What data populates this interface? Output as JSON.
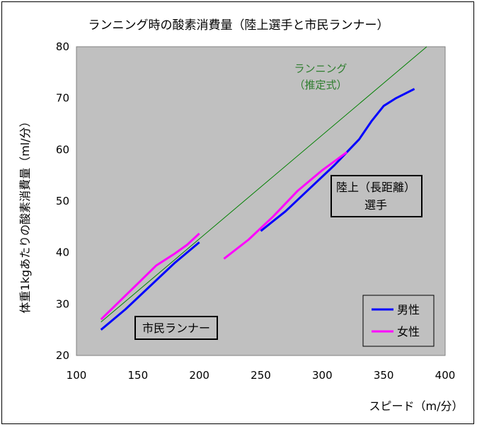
{
  "chart_data": {
    "type": "line",
    "title": "ランニング時の酸素消費量（陸上選手と市民ランナー）",
    "xlabel": "スピード（m/分）",
    "ylabel": "体重1kgあたりの酸素消費量（ml/分）",
    "xlim": [
      100,
      400
    ],
    "ylim": [
      20,
      80
    ],
    "xticks": [
      100,
      150,
      200,
      250,
      300,
      350,
      400
    ],
    "yticks": [
      20,
      30,
      40,
      50,
      60,
      70,
      80
    ],
    "grid": false,
    "plot_background": "#c0c0c0",
    "legend_position": "bottom-right",
    "series": [
      {
        "name": "男性",
        "color": "#0000ff",
        "segments": [
          [
            [
              120,
              25
            ],
            [
              140,
              29
            ],
            [
              160,
              33.5
            ],
            [
              180,
              38
            ],
            [
              200,
              42
            ]
          ],
          [
            [
              250,
              44.2
            ],
            [
              270,
              48
            ],
            [
              290,
              52.5
            ],
            [
              310,
              57
            ],
            [
              320,
              59.5
            ],
            [
              330,
              62
            ],
            [
              340,
              65.5
            ],
            [
              350,
              68.5
            ],
            [
              360,
              70
            ],
            [
              375,
              71.8
            ]
          ]
        ]
      },
      {
        "name": "女性",
        "color": "#ff00ff",
        "segments": [
          [
            [
              120,
              27
            ],
            [
              135,
              30.5
            ],
            [
              150,
              34
            ],
            [
              165,
              37.5
            ],
            [
              180,
              39.8
            ],
            [
              190,
              41.5
            ],
            [
              200,
              43.7
            ]
          ],
          [
            [
              220,
              38.8
            ],
            [
              240,
              42.5
            ],
            [
              260,
              47
            ],
            [
              280,
              52
            ],
            [
              300,
              56
            ],
            [
              320,
              59.5
            ]
          ]
        ]
      }
    ],
    "estimate_line": {
      "label_line1": "ランニング",
      "label_line2": "（推定式）",
      "color": "#008000",
      "points": [
        [
          120,
          26.5
        ],
        [
          385,
          80
        ]
      ]
    },
    "annotations": {
      "citizen_runner": "市民ランナー",
      "athlete_line1": "陸上（長距離）",
      "athlete_line2": "選手"
    }
  }
}
